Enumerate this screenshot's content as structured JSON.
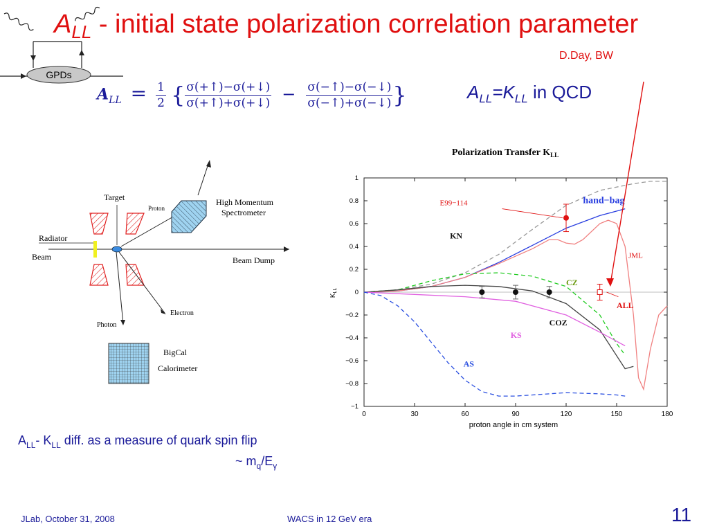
{
  "slide": {
    "title_A": "A",
    "title_sub": "LL",
    "title_rest": "- initial state polarization correlation parameter",
    "author": "D.Day, BW",
    "gpd_label": "GPDs",
    "formula": {
      "lhs": "A",
      "lhs_sub": "LL",
      "eq": "=",
      "half_num": "1",
      "half_den": "2",
      "open": "{",
      "t1_num": "σ(+↑)−σ(+↓)",
      "t1_den": "σ(+↑)+σ(+↓)",
      "minus": "−",
      "t2_num": "σ(−↑)−σ(−↓)",
      "t2_den": "σ(−↑)+σ(−↓)",
      "close": "}"
    },
    "qcd": {
      "a": "A",
      "a_sub": "LL",
      "eq": "=K",
      "k_sub": "LL",
      "rest": " in QCD"
    },
    "note1": {
      "a": "A",
      "a_sub": "LL",
      "mid": "- K",
      "k_sub": "LL",
      "rest": " diff. as a measure of quark spin flip"
    },
    "note2": {
      "a": "~ m",
      "m_sub": "q",
      "mid": "/E",
      "e_sub": "γ"
    },
    "footer_left": "JLab, October 31, 2008",
    "footer_center": "WACS in 12  GeV  era",
    "page_number": "11"
  },
  "setup": {
    "target": "Target",
    "proton": "Proton",
    "hms": "High Momentum",
    "hms2": "Spectrometer",
    "radiator": "Radiator",
    "beam": "Beam",
    "beam_dump": "Beam Dump",
    "electron": "Electron",
    "photon": "Photon",
    "bigcal": "BigCal",
    "calorimeter": "Calorimeter"
  },
  "chart_data": {
    "type": "line",
    "title": "Polarization Transfer K",
    "title_sub": "LL",
    "xlabel": "proton angle in cm system",
    "ylabel": "K",
    "ylabel_sub": "LL",
    "xlim": [
      0,
      180
    ],
    "ylim": [
      -1,
      1
    ],
    "xticks": [
      0,
      30,
      60,
      90,
      120,
      150,
      180
    ],
    "yticks": [
      1,
      0.8,
      0.6,
      0.4,
      0.2,
      0,
      -0.2,
      -0.4,
      -0.6,
      -0.8,
      -1
    ],
    "ytick_labels": [
      "1",
      "0.8",
      "0.6",
      "0.4",
      "0.2",
      "0",
      "−0.2",
      "−0.4",
      "−0.6",
      "−0.8",
      "−1"
    ],
    "colors": {
      "kn": "#999999",
      "handbag": "#2a3fe0",
      "jml": "#f08080",
      "cz": "#22cc22",
      "coz": "#444444",
      "ks": "#e060e0",
      "as": "#2a4fe0",
      "red": "#e01010",
      "green": "#6a9a10"
    },
    "series": [
      {
        "name": "KN",
        "style": "dashed",
        "x": [
          0,
          20,
          40,
          60,
          80,
          100,
          120,
          140,
          160,
          170,
          180
        ],
        "y": [
          0,
          0.02,
          0.07,
          0.17,
          0.33,
          0.55,
          0.76,
          0.89,
          0.95,
          0.97,
          0.97
        ]
      },
      {
        "name": "hand−bag",
        "style": "solid",
        "x": [
          0,
          20,
          40,
          60,
          80,
          100,
          120,
          140,
          155
        ],
        "y": [
          0,
          0.01,
          0.05,
          0.13,
          0.26,
          0.41,
          0.56,
          0.67,
          0.73
        ]
      },
      {
        "name": "JML",
        "style": "solid",
        "x": [
          0,
          20,
          40,
          60,
          80,
          100,
          110,
          115,
          120,
          125,
          130,
          140,
          145,
          150,
          155,
          160,
          163,
          166,
          170,
          175,
          180
        ],
        "y": [
          0,
          0.01,
          0.05,
          0.13,
          0.25,
          0.38,
          0.46,
          0.46,
          0.43,
          0.42,
          0.46,
          0.6,
          0.63,
          0.6,
          0.4,
          -0.2,
          -0.75,
          -0.85,
          -0.5,
          -0.2,
          -0.12
        ]
      },
      {
        "name": "CZ",
        "style": "dashed",
        "x": [
          0,
          20,
          40,
          60,
          80,
          100,
          120,
          140,
          150,
          155
        ],
        "y": [
          0,
          0.02,
          0.1,
          0.16,
          0.17,
          0.14,
          0.05,
          -0.2,
          -0.45,
          -0.55
        ]
      },
      {
        "name": "COZ",
        "style": "solid",
        "x": [
          0,
          20,
          40,
          60,
          80,
          100,
          120,
          140,
          155,
          160
        ],
        "y": [
          0,
          0.02,
          0.05,
          0.06,
          0.05,
          0.01,
          -0.1,
          -0.33,
          -0.67,
          -0.65
        ]
      },
      {
        "name": "KS",
        "style": "solid",
        "x": [
          0,
          30,
          60,
          90,
          120,
          140,
          155
        ],
        "y": [
          0,
          -0.02,
          -0.04,
          -0.08,
          -0.2,
          -0.35,
          -0.47
        ]
      },
      {
        "name": "AS",
        "style": "dashed",
        "x": [
          0,
          10,
          20,
          30,
          40,
          50,
          60,
          70,
          80,
          90,
          100,
          120,
          140,
          150,
          155
        ],
        "y": [
          0,
          -0.03,
          -0.12,
          -0.26,
          -0.44,
          -0.62,
          -0.77,
          -0.87,
          -0.91,
          -0.91,
          -0.9,
          -0.88,
          -0.89,
          -0.9,
          -0.91
        ]
      }
    ],
    "points": [
      {
        "name": "E99−114",
        "x": 120,
        "y": 0.65,
        "err": 0.12,
        "style": "filled-red"
      },
      {
        "x": 70,
        "y": 0,
        "err": 0.05,
        "style": "filled-black"
      },
      {
        "x": 90,
        "y": 0,
        "err": 0.06,
        "style": "filled-black"
      },
      {
        "x": 110,
        "y": 0,
        "err": 0.05,
        "style": "filled-black"
      },
      {
        "name": "ALL",
        "x": 140,
        "y": 0,
        "err": 0.07,
        "style": "open-red"
      }
    ],
    "labels": {
      "e99": "E99−114",
      "handbag": "hand−bag",
      "kn": "KN",
      "jml": "JML",
      "cz": "CZ",
      "all": "ALL",
      "coz": "COZ",
      "ks": "KS",
      "as": "AS"
    }
  }
}
